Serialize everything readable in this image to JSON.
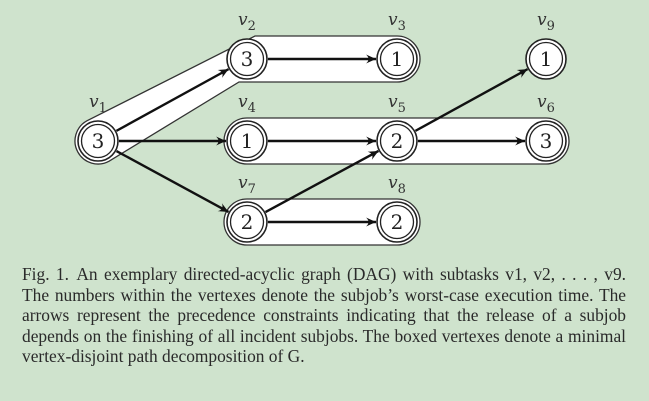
{
  "figure": {
    "nodes": [
      {
        "id": "v1",
        "label": "v1",
        "label_base": "v",
        "label_sub": "1",
        "value": "3"
      },
      {
        "id": "v2",
        "label": "v2",
        "label_base": "v",
        "label_sub": "2",
        "value": "3"
      },
      {
        "id": "v3",
        "label": "v3",
        "label_base": "v",
        "label_sub": "3",
        "value": "1"
      },
      {
        "id": "v4",
        "label": "v4",
        "label_base": "v",
        "label_sub": "4",
        "value": "1"
      },
      {
        "id": "v5",
        "label": "v5",
        "label_base": "v",
        "label_sub": "5",
        "value": "2"
      },
      {
        "id": "v6",
        "label": "v6",
        "label_base": "v",
        "label_sub": "6",
        "value": "3"
      },
      {
        "id": "v7",
        "label": "v7",
        "label_base": "v",
        "label_sub": "7",
        "value": "2"
      },
      {
        "id": "v8",
        "label": "v8",
        "label_base": "v",
        "label_sub": "8",
        "value": "2"
      },
      {
        "id": "v9",
        "label": "v9",
        "label_base": "v",
        "label_sub": "9",
        "value": "1"
      }
    ],
    "edges": [
      {
        "from": "v1",
        "to": "v2"
      },
      {
        "from": "v1",
        "to": "v4"
      },
      {
        "from": "v1",
        "to": "v7"
      },
      {
        "from": "v2",
        "to": "v3"
      },
      {
        "from": "v4",
        "to": "v5"
      },
      {
        "from": "v5",
        "to": "v6"
      },
      {
        "from": "v5",
        "to": "v9"
      },
      {
        "from": "v7",
        "to": "v5"
      },
      {
        "from": "v7",
        "to": "v8"
      }
    ],
    "path_decomposition": [
      [
        "v1",
        "v2",
        "v3"
      ],
      [
        "v4",
        "v5",
        "v6"
      ],
      [
        "v7",
        "v8"
      ],
      [
        "v9"
      ]
    ]
  },
  "caption": {
    "label": "Fig. 1.",
    "text": "An exemplary directed-acyclic graph (DAG) with subtasks v1, v2, . . . , v9. The numbers within the vertexes denote the subjob’s worst-case execution time. The arrows represent the precedence constraints indicating that the release of a subjob depends on the finishing of all incident subjobs. The boxed vertexes denote a minimal vertex-disjoint path decomposition of G."
  }
}
